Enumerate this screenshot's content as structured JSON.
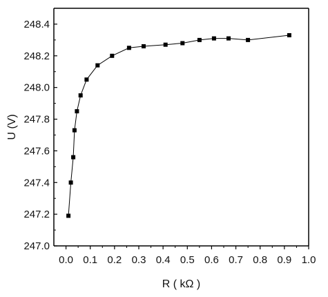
{
  "chart_data": {
    "type": "line",
    "title": "",
    "xlabel": "R ( kΩ )",
    "ylabel": "U (V)",
    "xlim": [
      -0.05,
      1.0
    ],
    "ylim": [
      247.0,
      248.5
    ],
    "xticks": [
      0.0,
      0.1,
      0.2,
      0.3,
      0.4,
      0.5,
      0.6,
      0.7,
      0.8,
      0.9,
      1.0
    ],
    "xtick_labels": [
      "0.0",
      "0.1",
      "0.2",
      "0.3",
      "0.4",
      "0.5",
      "0.6",
      "0.7",
      "0.8",
      "0.9",
      "1.0"
    ],
    "yticks": [
      247.0,
      247.2,
      247.4,
      247.6,
      247.8,
      248.0,
      248.2,
      248.4
    ],
    "ytick_labels": [
      "247.0",
      "247.2",
      "247.4",
      "247.6",
      "247.8",
      "248.0",
      "248.2",
      "248.4"
    ],
    "grid": false,
    "legend": "none",
    "marker": "square",
    "series": [
      {
        "color": "#000000",
        "x": [
          0.01,
          0.02,
          0.03,
          0.035,
          0.045,
          0.06,
          0.085,
          0.13,
          0.19,
          0.26,
          0.32,
          0.41,
          0.48,
          0.55,
          0.61,
          0.67,
          0.75,
          0.92
        ],
        "y": [
          247.19,
          247.4,
          247.56,
          247.73,
          247.85,
          247.95,
          248.05,
          248.14,
          248.2,
          248.25,
          248.26,
          248.27,
          248.28,
          248.3,
          248.31,
          248.31,
          248.3,
          248.33
        ]
      }
    ]
  }
}
